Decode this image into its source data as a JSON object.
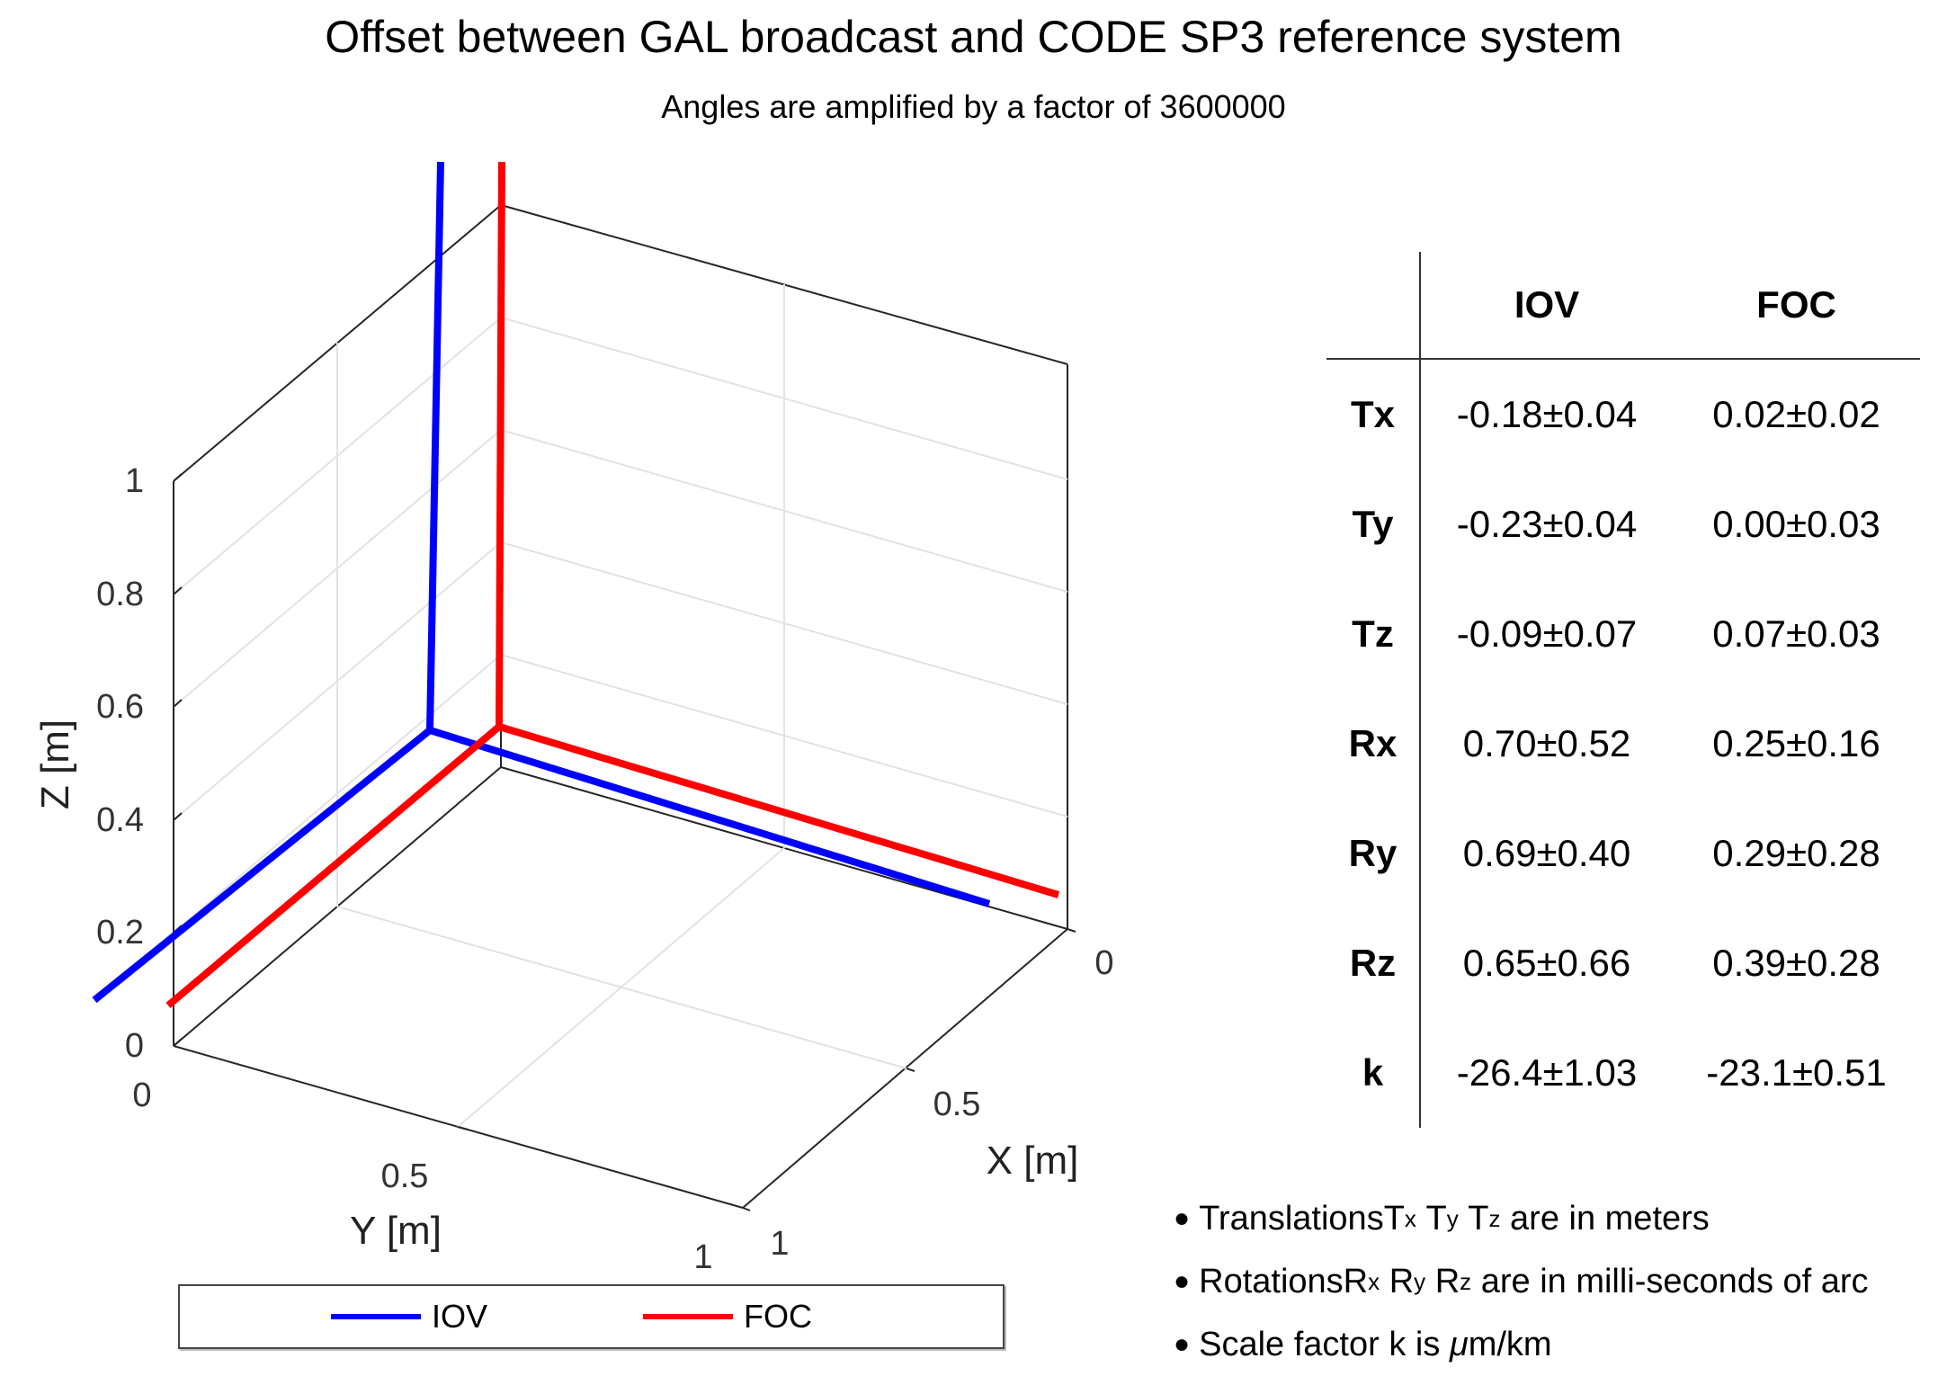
{
  "chart_data": {
    "type": "line3d",
    "title": "Offset between GAL broadcast and CODE SP3 reference system",
    "subtitle": "Angles are amplified by a factor of 3600000",
    "xlabel": "X [m]",
    "ylabel": "Y [m]",
    "zlabel": "Z [m]",
    "xlim": [
      0,
      1
    ],
    "ylim": [
      0,
      1
    ],
    "zlim": [
      0,
      1
    ],
    "x_ticks": [
      "0",
      "0.5",
      "1"
    ],
    "y_ticks": [
      "0",
      "0.5",
      "1"
    ],
    "z_ticks": [
      "0",
      "0.2",
      "0.4",
      "0.6",
      "0.8",
      "1"
    ],
    "grid": true,
    "series": [
      {
        "name": "IOV",
        "color": "#0000ff",
        "description": "reference frame axes drawn from translated/rotated origin"
      },
      {
        "name": "FOC",
        "color": "#ff0000",
        "description": "reference frame axes drawn from translated/rotated origin"
      }
    ],
    "legend": {
      "position": "bottom",
      "entries": [
        "IOV",
        "FOC"
      ]
    }
  },
  "table": {
    "columns": [
      "IOV",
      "FOC"
    ],
    "rows": [
      {
        "label": "Tx",
        "iov": "-0.18±0.04",
        "foc": "0.02±0.02"
      },
      {
        "label": "Ty",
        "iov": "-0.23±0.04",
        "foc": "0.00±0.03"
      },
      {
        "label": "Tz",
        "iov": "-0.09±0.07",
        "foc": "0.07±0.03"
      },
      {
        "label": "Rx",
        "iov": "0.70±0.52",
        "foc": "0.25±0.16"
      },
      {
        "label": "Ry",
        "iov": "0.69±0.40",
        "foc": "0.29±0.28"
      },
      {
        "label": "Rz",
        "iov": "0.65±0.66",
        "foc": "0.39±0.28"
      },
      {
        "label": "k",
        "iov": "-26.4±1.03",
        "foc": "-23.1±0.51"
      }
    ]
  },
  "notes": {
    "translations": {
      "pre": "Translations ",
      "T": "T",
      "x": "x",
      "y": "y",
      "z": "z",
      "post": " are in meters"
    },
    "rotations": {
      "pre": "Rotations ",
      "R": "R",
      "x": "x",
      "y": "y",
      "z": "z",
      "post": " are in milli-seconds of arc"
    },
    "scale": {
      "pre": "Scale factor k is ",
      "mu": "μ",
      "post": "m/km"
    }
  }
}
